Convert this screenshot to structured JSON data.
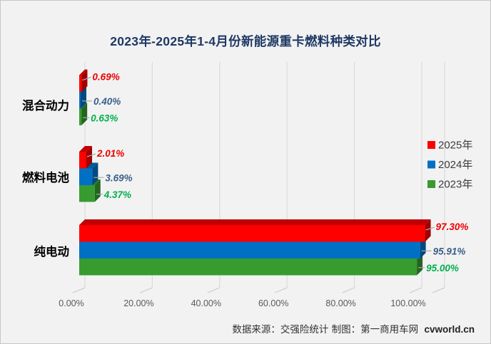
{
  "chart_data": {
    "type": "bar",
    "orientation": "horizontal",
    "title": "2023年-2025年1-4月份新能源重卡燃料种类对比",
    "categories": [
      "混合动力",
      "燃料电池",
      "纯电动"
    ],
    "series": [
      {
        "name": "2025年",
        "color": "#FE0000",
        "color_dark": "#C00000",
        "color_darker": "#A00000",
        "label_color": "#EE0000",
        "values": [
          0.69,
          2.01,
          97.3
        ],
        "labels": [
          "0.69%",
          "0.40%",
          "0.63%"
        ],
        "value_labels": [
          "0.69%",
          "2.01%",
          "97.30%"
        ]
      },
      {
        "name": "2024年",
        "color": "#0070C5",
        "color_dark": "#005B9F",
        "color_darker": "#004A82",
        "label_color": "#3A5F8A",
        "values": [
          0.4,
          3.69,
          95.91
        ],
        "value_labels": [
          "0.40%",
          "3.69%",
          "95.91%"
        ]
      },
      {
        "name": "2023年",
        "color": "#379B2F",
        "color_dark": "#2B7A24",
        "color_darker": "#236520",
        "label_color": "#00B050",
        "values": [
          0.63,
          4.37,
          95.0
        ],
        "value_labels": [
          "0.63%",
          "4.37%",
          "95.00%"
        ]
      }
    ],
    "x_ticks": [
      "0.00%",
      "20.00%",
      "40.00%",
      "60.00%",
      "80.00%",
      "100.00%"
    ],
    "xlim": [
      0,
      100
    ],
    "grid": true,
    "legend_position": "right"
  },
  "footer": {
    "source": "数据来源：交强险统计 制图：第一商用车网",
    "site": "cvworld.cn"
  }
}
